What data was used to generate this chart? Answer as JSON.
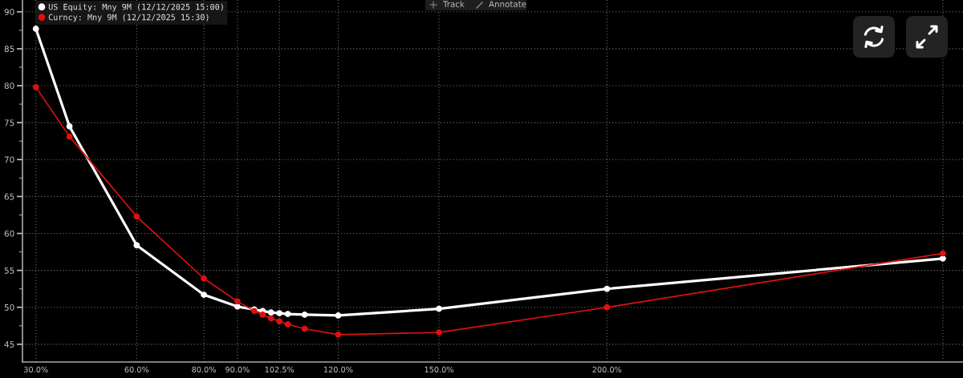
{
  "chart_data": {
    "type": "line",
    "x": [
      30,
      40,
      60,
      80,
      90,
      95,
      97.5,
      100,
      102.5,
      105,
      110,
      120,
      150,
      200,
      300
    ],
    "series": [
      {
        "name": "US Equity: Mny 9M (12/12/2025 15:00)",
        "color": "#ffffff",
        "values": [
          87.7,
          74.5,
          58.4,
          51.7,
          50.1,
          49.7,
          49.5,
          49.3,
          49.2,
          49.1,
          49.0,
          48.9,
          49.8,
          52.5,
          56.6
        ]
      },
      {
        "name": "Curncy: Mny 9M (12/12/2025 15:30)",
        "color": "#e01010",
        "values": [
          79.8,
          73.1,
          62.3,
          53.9,
          50.8,
          49.5,
          49.0,
          48.5,
          48.1,
          47.7,
          47.1,
          46.3,
          46.6,
          50.0,
          57.3
        ]
      }
    ],
    "xlim": [
      26,
      306
    ],
    "ylim": [
      42.6,
      91.6
    ],
    "xticks": [
      {
        "value": 30,
        "label": "30.0%"
      },
      {
        "value": 60,
        "label": "60.0%"
      },
      {
        "value": 80,
        "label": "80.0%"
      },
      {
        "value": 90,
        "label": "90.0%"
      },
      {
        "value": 102.5,
        "label": "102.5%"
      },
      {
        "value": 120,
        "label": "120.0%"
      },
      {
        "value": 150,
        "label": "150.0%"
      },
      {
        "value": 200,
        "label": "200.0%"
      },
      {
        "value": 300,
        "label": null
      }
    ],
    "yticks": [
      45,
      50,
      55,
      60,
      65,
      70,
      75,
      80,
      85,
      90
    ],
    "grid": true,
    "legend": "top left",
    "marker": "circle",
    "line_style": "solid",
    "annotations": [
      "Track",
      "Annotate"
    ]
  }
}
